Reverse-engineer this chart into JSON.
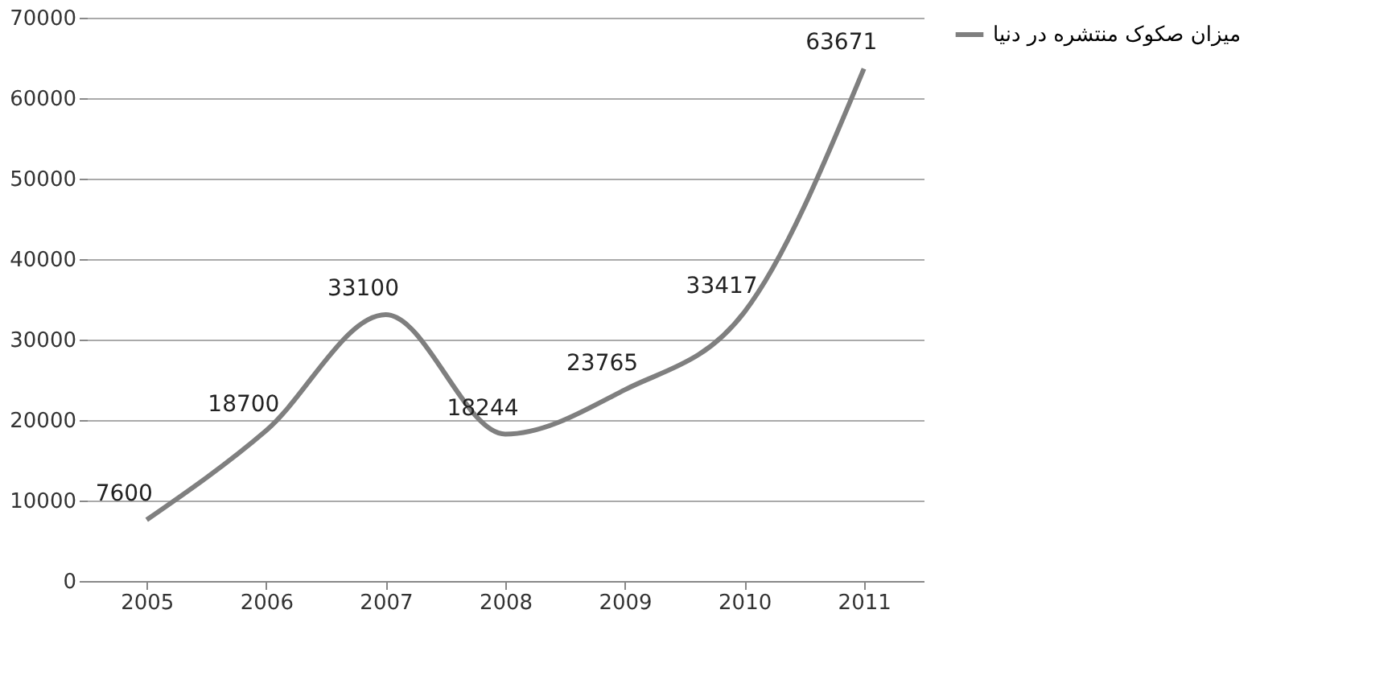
{
  "chart_data": {
    "type": "line",
    "categories": [
      "2005",
      "2006",
      "2007",
      "2008",
      "2009",
      "2010",
      "2011"
    ],
    "series": [
      {
        "name": "میزان صکوک منتشره در دنیا",
        "color": "#7f7f7f",
        "values": [
          7600,
          18700,
          33100,
          18244,
          23765,
          33417,
          63671
        ]
      }
    ],
    "ylim": [
      0,
      70000
    ],
    "yticks": [
      0,
      10000,
      20000,
      30000,
      40000,
      50000,
      60000,
      70000
    ],
    "grid": "y",
    "legend": "right",
    "data_labels": true
  }
}
